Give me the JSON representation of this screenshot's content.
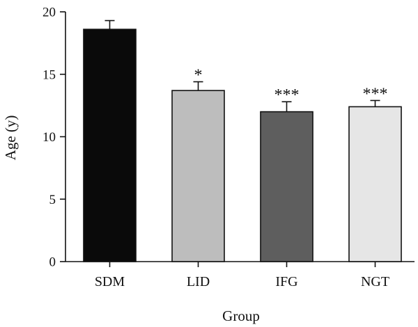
{
  "chart_data": {
    "type": "bar",
    "title": "",
    "xlabel": "Group",
    "ylabel": "Age (y)",
    "ylim": [
      0,
      20
    ],
    "yticks": [
      0,
      5,
      10,
      15,
      20
    ],
    "categories": [
      "SDM",
      "LID",
      "IFG",
      "NGT"
    ],
    "values": [
      18.6,
      13.7,
      12.0,
      12.4
    ],
    "errors": [
      0.7,
      0.7,
      0.8,
      0.5
    ],
    "significance": [
      "",
      "*",
      "***",
      "***"
    ],
    "bar_colors": [
      "#0a0a0a",
      "#bdbdbd",
      "#5e5e5e",
      "#e6e6e6"
    ],
    "grid": false,
    "legend": false
  }
}
